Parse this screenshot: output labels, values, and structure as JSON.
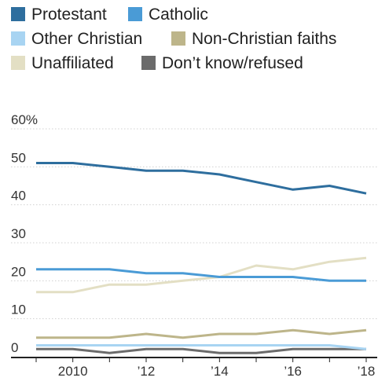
{
  "chart_data": {
    "type": "line",
    "title": "",
    "xlabel": "",
    "ylabel": "",
    "x": [
      2009,
      2010,
      2011,
      2012,
      2013,
      2014,
      2015,
      2016,
      2017,
      2018
    ],
    "xlim": [
      2009,
      2018.3
    ],
    "ylim": [
      0,
      60
    ],
    "x_ticks": [
      {
        "value": 2010,
        "label": "2010"
      },
      {
        "value": 2012,
        "label": "’12"
      },
      {
        "value": 2014,
        "label": "’14"
      },
      {
        "value": 2016,
        "label": "’16"
      },
      {
        "value": 2018,
        "label": "’18"
      }
    ],
    "y_ticks": [
      {
        "value": 0,
        "label": "0"
      },
      {
        "value": 10,
        "label": "10"
      },
      {
        "value": 20,
        "label": "20"
      },
      {
        "value": 30,
        "label": "30"
      },
      {
        "value": 40,
        "label": "40"
      },
      {
        "value": 50,
        "label": "50"
      },
      {
        "value": 60,
        "label": "60%"
      }
    ],
    "grid": true,
    "legend_position": "top-left",
    "series": [
      {
        "name": "Protestant",
        "color": "#2e6e9e",
        "values": [
          51,
          51,
          50,
          49,
          49,
          48,
          46,
          44,
          45,
          43
        ]
      },
      {
        "name": "Catholic",
        "color": "#4a9bd6",
        "values": [
          23,
          23,
          23,
          22,
          22,
          21,
          21,
          21,
          20,
          20
        ]
      },
      {
        "name": "Other Christian",
        "color": "#a8d4f2",
        "values": [
          3,
          3,
          3,
          3,
          3,
          3,
          3,
          3,
          3,
          2
        ]
      },
      {
        "name": "Non-Christian faiths",
        "color": "#bdb58a",
        "values": [
          5,
          5,
          5,
          6,
          5,
          6,
          6,
          7,
          6,
          7
        ]
      },
      {
        "name": "Unaffiliated",
        "color": "#e3dfc4",
        "values": [
          17,
          17,
          19,
          19,
          20,
          21,
          24,
          23,
          25,
          26
        ]
      },
      {
        "name": "Don’t know/refused",
        "color": "#6b6b6b",
        "values": [
          2,
          2,
          1,
          2,
          2,
          1,
          1,
          2,
          2,
          2
        ]
      }
    ]
  }
}
